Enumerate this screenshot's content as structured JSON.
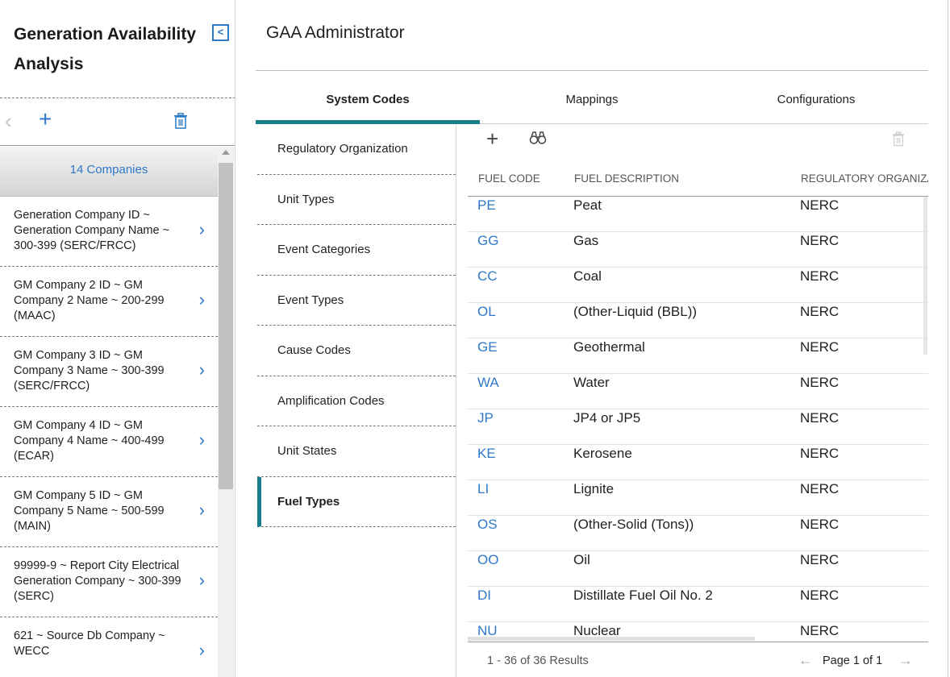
{
  "sidebar": {
    "title": "Generation Availability Analysis",
    "company_count": "14 Companies",
    "companies": [
      "Generation Company ID ~ Generation Company Name ~ 300-399 (SERC/FRCC)",
      "GM Company 2 ID ~ GM Company 2 Name ~ 200-299 (MAAC)",
      "GM Company 3 ID ~ GM Company 3 Name ~ 300-399 (SERC/FRCC)",
      "GM Company 4 ID ~ GM Company 4 Name ~ 400-499 (ECAR)",
      "GM Company 5 ID ~ GM Company 5 Name ~ 500-599 (MAIN)",
      "99999-9 ~ Report City Electrical Generation Company ~ 300-399 (SERC)",
      "621 ~ Source Db Company ~ WECC"
    ]
  },
  "main": {
    "title": "GAA Administrator",
    "tabs": [
      "System Codes",
      "Mappings",
      "Configurations"
    ],
    "active_tab": "System Codes",
    "subnav": [
      "Regulatory Organization",
      "Unit Types",
      "Event Categories",
      "Event Types",
      "Cause Codes",
      "Amplification Codes",
      "Unit States",
      "Fuel Types"
    ],
    "active_subnav": "Fuel Types"
  },
  "grid": {
    "columns": [
      "FUEL CODE",
      "FUEL DESCRIPTION",
      "REGULATORY ORGANIZATION"
    ],
    "rows": [
      {
        "code": "PE",
        "desc": "Peat",
        "org": "NERC"
      },
      {
        "code": "GG",
        "desc": "Gas",
        "org": "NERC"
      },
      {
        "code": "CC",
        "desc": "Coal",
        "org": "NERC"
      },
      {
        "code": "OL",
        "desc": "(Other-Liquid (BBL))",
        "org": "NERC"
      },
      {
        "code": "GE",
        "desc": "Geothermal",
        "org": "NERC"
      },
      {
        "code": "WA",
        "desc": "Water",
        "org": "NERC"
      },
      {
        "code": "JP",
        "desc": "JP4 or JP5",
        "org": "NERC"
      },
      {
        "code": "KE",
        "desc": "Kerosene",
        "org": "NERC"
      },
      {
        "code": "LI",
        "desc": "Lignite",
        "org": "NERC"
      },
      {
        "code": "OS",
        "desc": "(Other-Solid (Tons))",
        "org": "NERC"
      },
      {
        "code": "OO",
        "desc": "Oil",
        "org": "NERC"
      },
      {
        "code": "DI",
        "desc": "Distillate Fuel Oil No. 2",
        "org": "NERC"
      },
      {
        "code": "NU",
        "desc": "Nuclear",
        "org": "NERC"
      }
    ],
    "results": "1 - 36 of 36 Results",
    "page": "Page 1 of 1"
  },
  "icons": {
    "collapse": "chevron-left-icon",
    "back": "chevron-left-icon",
    "add": "plus-icon",
    "delete": "trash-icon",
    "search": "binoculars-icon",
    "row": "chevron-right-icon"
  },
  "colors": {
    "accent": "#1a7f8c",
    "link": "#2f78c9"
  }
}
